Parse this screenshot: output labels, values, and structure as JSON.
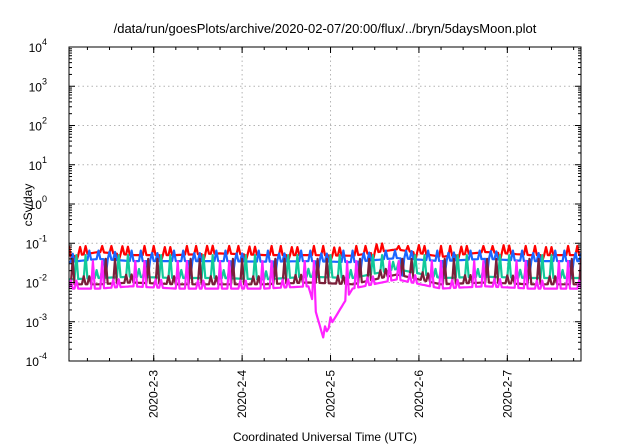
{
  "chart_data": {
    "type": "line",
    "title": "/data/run/goesPlots/archive/2020-02-07/20:00/flux/../bryn/5daysMoon.plot",
    "xlabel": "Coordinated Universal Time (UTC)",
    "ylabel": "cSv/day",
    "yscale": "log",
    "ylim": [
      0.0001,
      10000
    ],
    "xlim": [
      "2020-02-02T01:00",
      "2020-02-07T20:00"
    ],
    "grid": true,
    "legend": "none",
    "y_ticks": [
      {
        "base": "10",
        "exp": "-4",
        "value": 0.0001
      },
      {
        "base": "10",
        "exp": "-3",
        "value": 0.001
      },
      {
        "base": "10",
        "exp": "-2",
        "value": 0.01
      },
      {
        "base": "10",
        "exp": "-1",
        "value": 0.1
      },
      {
        "base": "10",
        "exp": "0",
        "value": 1
      },
      {
        "base": "10",
        "exp": "1",
        "value": 10
      },
      {
        "base": "10",
        "exp": "2",
        "value": 100
      },
      {
        "base": "10",
        "exp": "3",
        "value": 1000
      },
      {
        "base": "10",
        "exp": "4",
        "value": 10000
      }
    ],
    "x_ticks": [
      {
        "label": "2020-2-3",
        "date": "2020-02-03T00:00"
      },
      {
        "label": "2020-2-4",
        "date": "2020-02-04T00:00"
      },
      {
        "label": "2020-2-5",
        "date": "2020-02-05T00:00"
      },
      {
        "label": "2020-2-6",
        "date": "2020-02-06T00:00"
      },
      {
        "label": "2020-2-7",
        "date": "2020-02-07T00:00"
      }
    ],
    "series": [
      {
        "color": "#ff0000",
        "baseline": 0.045,
        "spike": 0.085,
        "dip": 0.035,
        "x": [
          "2020-02-02T01:00",
          "2020-02-02T09:00",
          "2020-02-02T18:00",
          "2020-02-03T06:00",
          "2020-02-03T18:00",
          "2020-02-04T06:00",
          "2020-02-04T18:00",
          "2020-02-05T06:00",
          "2020-02-05T18:00",
          "2020-02-06T06:00",
          "2020-02-06T18:00",
          "2020-02-07T06:00",
          "2020-02-07T20:00"
        ],
        "y": [
          0.045,
          0.06,
          0.05,
          0.05,
          0.055,
          0.05,
          0.05,
          0.048,
          0.07,
          0.045,
          0.06,
          0.05,
          0.05
        ]
      },
      {
        "color": "#1a66ff",
        "baseline": 0.035,
        "spike": 0.065,
        "dip": 0.015,
        "x": [
          "2020-02-02T01:00",
          "2020-02-02T09:00",
          "2020-02-02T18:00",
          "2020-02-03T06:00",
          "2020-02-03T18:00",
          "2020-02-04T06:00",
          "2020-02-04T18:00",
          "2020-02-05T06:00",
          "2020-02-05T18:00",
          "2020-02-06T06:00",
          "2020-02-06T18:00",
          "2020-02-07T06:00",
          "2020-02-07T20:00"
        ],
        "y": [
          0.033,
          0.04,
          0.035,
          0.035,
          0.035,
          0.034,
          0.035,
          0.033,
          0.042,
          0.035,
          0.04,
          0.035,
          0.035
        ]
      },
      {
        "color": "#11c99a",
        "baseline": 0.013,
        "spike": 0.05,
        "dip": 0.01,
        "x": [
          "2020-02-02T01:00",
          "2020-02-02T09:00",
          "2020-02-02T18:00",
          "2020-02-03T06:00",
          "2020-02-03T18:00",
          "2020-02-04T06:00",
          "2020-02-04T18:00",
          "2020-02-05T06:00",
          "2020-02-05T18:00",
          "2020-02-06T06:00",
          "2020-02-06T18:00",
          "2020-02-07T06:00",
          "2020-02-07T20:00"
        ],
        "y": [
          0.012,
          0.013,
          0.014,
          0.013,
          0.013,
          0.012,
          0.014,
          0.013,
          0.022,
          0.013,
          0.014,
          0.013,
          0.013
        ]
      },
      {
        "color": "#7a1f3a",
        "baseline": 0.009,
        "spike": 0.04,
        "dip": 0.007,
        "x": [
          "2020-02-02T01:00",
          "2020-02-02T09:00",
          "2020-02-02T18:00",
          "2020-02-03T06:00",
          "2020-02-03T18:00",
          "2020-02-04T06:00",
          "2020-02-04T18:00",
          "2020-02-05T06:00",
          "2020-02-05T18:00",
          "2020-02-06T06:00",
          "2020-02-06T18:00",
          "2020-02-07T06:00",
          "2020-02-07T20:00"
        ],
        "y": [
          0.009,
          0.009,
          0.01,
          0.009,
          0.009,
          0.009,
          0.01,
          0.009,
          0.016,
          0.009,
          0.01,
          0.009,
          0.009
        ]
      },
      {
        "color": "#ff22ff",
        "baseline": 0.007,
        "spike": 0.035,
        "dip": 0.0004,
        "x": [
          "2020-02-02T01:00",
          "2020-02-02T09:00",
          "2020-02-02T18:00",
          "2020-02-03T06:00",
          "2020-02-03T18:00",
          "2020-02-04T06:00",
          "2020-02-04T18:00",
          "2020-02-04T22:00",
          "2020-02-05T06:00",
          "2020-02-05T18:00",
          "2020-02-06T06:00",
          "2020-02-06T18:00",
          "2020-02-07T06:00",
          "2020-02-07T20:00"
        ],
        "y": [
          0.007,
          0.007,
          0.008,
          0.007,
          0.007,
          0.007,
          0.008,
          0.0004,
          0.007,
          0.012,
          0.007,
          0.008,
          0.007,
          0.007
        ]
      }
    ]
  }
}
